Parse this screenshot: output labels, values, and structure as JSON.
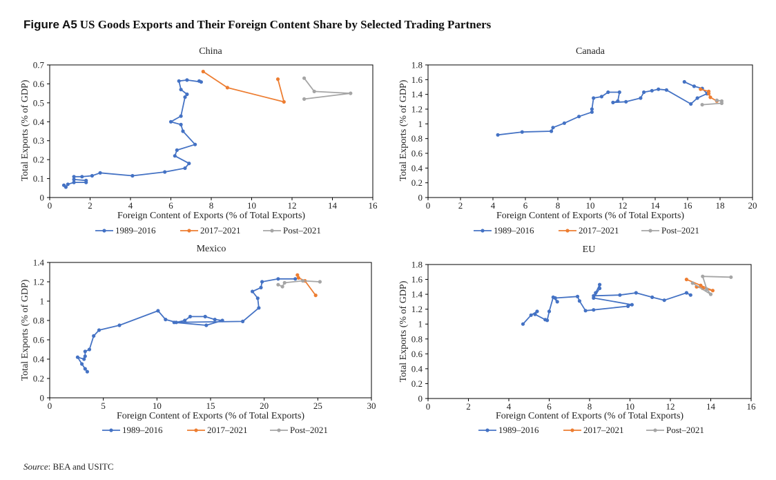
{
  "figure": {
    "label": "Figure A5",
    "title": "US Goods Exports and Their Foreign Content Share by Selected Trading Partners"
  },
  "source": {
    "label": "Source",
    "text": ": BEA and USITC"
  },
  "chart_data": [
    {
      "type": "line",
      "title": "China",
      "xlabel": "Foreign Content of Exports (% of Total Exports)",
      "ylabel": "Total Exports (% of GDP)",
      "xlim": [
        0,
        16
      ],
      "ylim": [
        0,
        0.7
      ],
      "xticks": [
        0,
        2,
        4,
        6,
        8,
        10,
        12,
        14,
        16
      ],
      "yticks": [
        0,
        0.1,
        0.2,
        0.3,
        0.4,
        0.5,
        0.6,
        0.7
      ],
      "xtick_labels": [
        "0",
        "2",
        "4",
        "6",
        "8",
        "10",
        "12",
        "14",
        "16"
      ],
      "ytick_labels": [
        "0",
        "0.1",
        "0.2",
        "0.3",
        "0.4",
        "0.5",
        "0.6",
        "0.7"
      ],
      "legend_position": "bottom",
      "series": [
        {
          "name": "1989–2016",
          "color": "#4472c4",
          "points": [
            [
              0.7,
              0.065
            ],
            [
              0.8,
              0.055
            ],
            [
              0.9,
              0.07
            ],
            [
              1.2,
              0.08
            ],
            [
              1.8,
              0.08
            ],
            [
              1.8,
              0.09
            ],
            [
              1.2,
              0.095
            ],
            [
              1.2,
              0.11
            ],
            [
              1.6,
              0.11
            ],
            [
              2.1,
              0.115
            ],
            [
              2.5,
              0.13
            ],
            [
              4.1,
              0.115
            ],
            [
              5.7,
              0.135
            ],
            [
              6.7,
              0.155
            ],
            [
              6.9,
              0.18
            ],
            [
              6.2,
              0.22
            ],
            [
              6.3,
              0.25
            ],
            [
              7.2,
              0.28
            ],
            [
              6.6,
              0.35
            ],
            [
              6.5,
              0.385
            ],
            [
              6.0,
              0.4
            ],
            [
              6.5,
              0.43
            ],
            [
              6.7,
              0.53
            ],
            [
              6.8,
              0.545
            ],
            [
              6.5,
              0.57
            ],
            [
              6.4,
              0.615
            ],
            [
              6.8,
              0.62
            ],
            [
              7.5,
              0.61
            ],
            [
              7.4,
              0.615
            ]
          ]
        },
        {
          "name": "2017–2021",
          "color": "#ed7d31",
          "points": [
            [
              7.6,
              0.665
            ],
            [
              8.8,
              0.58
            ],
            [
              11.6,
              0.505
            ],
            [
              11.3,
              0.625
            ]
          ]
        },
        {
          "name": "Post–2021",
          "color": "#a5a5a5",
          "points": [
            [
              12.6,
              0.52
            ],
            [
              14.9,
              0.55
            ],
            [
              13.1,
              0.56
            ],
            [
              12.6,
              0.63
            ]
          ]
        }
      ]
    },
    {
      "type": "line",
      "title": "Canada",
      "xlabel": "Foreign Content of Exports (% of Total Exports)",
      "ylabel": "Total Exports (% of GDP)",
      "xlim": [
        0,
        20
      ],
      "ylim": [
        0,
        1.8
      ],
      "xticks": [
        0,
        2,
        4,
        6,
        8,
        10,
        12,
        14,
        16,
        18,
        20
      ],
      "yticks": [
        0,
        0.2,
        0.4,
        0.6,
        0.8,
        1,
        1.2,
        1.4,
        1.6,
        1.8
      ],
      "xtick_labels": [
        "0",
        "2",
        "4",
        "6",
        "8",
        "10",
        "12",
        "14",
        "16",
        "18",
        "20"
      ],
      "ytick_labels": [
        "0",
        "0.2",
        "0.4",
        "0.6",
        "0.8",
        "1",
        "1.2",
        "1.4",
        "1.6",
        "1.8"
      ],
      "legend_position": "bottom",
      "series": [
        {
          "name": "1989–2016",
          "color": "#4472c4",
          "points": [
            [
              4.3,
              0.85
            ],
            [
              5.8,
              0.89
            ],
            [
              7.6,
              0.9
            ],
            [
              7.7,
              0.95
            ],
            [
              8.4,
              1.01
            ],
            [
              9.3,
              1.1
            ],
            [
              10.1,
              1.16
            ],
            [
              10.1,
              1.2
            ],
            [
              10.2,
              1.35
            ],
            [
              10.7,
              1.37
            ],
            [
              11.1,
              1.43
            ],
            [
              11.8,
              1.43
            ],
            [
              11.7,
              1.31
            ],
            [
              11.4,
              1.29
            ],
            [
              12.2,
              1.3
            ],
            [
              13.1,
              1.35
            ],
            [
              13.3,
              1.43
            ],
            [
              13.8,
              1.45
            ],
            [
              14.2,
              1.47
            ],
            [
              14.7,
              1.46
            ],
            [
              16.2,
              1.27
            ],
            [
              16.6,
              1.35
            ],
            [
              17.2,
              1.41
            ],
            [
              16.9,
              1.48
            ],
            [
              16.4,
              1.51
            ],
            [
              15.8,
              1.57
            ]
          ]
        },
        {
          "name": "2017–2021",
          "color": "#ed7d31",
          "points": [
            [
              16.8,
              1.47
            ],
            [
              17.3,
              1.44
            ],
            [
              17.3,
              1.41
            ],
            [
              17.4,
              1.36
            ],
            [
              17.8,
              1.31
            ]
          ]
        },
        {
          "name": "Post–2021",
          "color": "#a5a5a5",
          "points": [
            [
              16.9,
              1.26
            ],
            [
              18.1,
              1.28
            ],
            [
              18.1,
              1.31
            ],
            [
              17.8,
              1.32
            ]
          ]
        }
      ]
    },
    {
      "type": "line",
      "title": "Mexico",
      "xlabel": "Foreign Content of Exports (% of Total Exports)",
      "ylabel": "Total Exports (% of GDP)",
      "xlim": [
        0,
        30
      ],
      "ylim": [
        0,
        1.4
      ],
      "xticks": [
        0,
        5,
        10,
        15,
        20,
        25,
        30
      ],
      "yticks": [
        0,
        0.2,
        0.4,
        0.6,
        0.8,
        1,
        1.2,
        1.4
      ],
      "xtick_labels": [
        "0",
        "5",
        "10",
        "15",
        "20",
        "25",
        "30"
      ],
      "ytick_labels": [
        "0",
        "0.2",
        "0.4",
        "0.6",
        "0.8",
        "1",
        "1.2",
        "1.4"
      ],
      "legend_position": "bottom",
      "series": [
        {
          "name": "1989–2016",
          "color": "#4472c4",
          "points": [
            [
              3.5,
              0.27
            ],
            [
              3.3,
              0.3
            ],
            [
              3.0,
              0.35
            ],
            [
              2.6,
              0.42
            ],
            [
              3.2,
              0.4
            ],
            [
              3.3,
              0.43
            ],
            [
              3.3,
              0.48
            ],
            [
              3.7,
              0.5
            ],
            [
              4.1,
              0.64
            ],
            [
              4.6,
              0.7
            ],
            [
              6.5,
              0.75
            ],
            [
              10.1,
              0.9
            ],
            [
              10.8,
              0.81
            ],
            [
              11.8,
              0.78
            ],
            [
              12.6,
              0.8
            ],
            [
              13.1,
              0.84
            ],
            [
              14.5,
              0.84
            ],
            [
              15.4,
              0.81
            ],
            [
              16.1,
              0.8
            ],
            [
              14.6,
              0.75
            ],
            [
              11.6,
              0.78
            ],
            [
              18.0,
              0.79
            ],
            [
              19.5,
              0.93
            ],
            [
              19.4,
              1.03
            ],
            [
              18.9,
              1.1
            ],
            [
              19.7,
              1.14
            ],
            [
              19.8,
              1.2
            ],
            [
              21.3,
              1.23
            ],
            [
              22.9,
              1.23
            ]
          ]
        },
        {
          "name": "2017–2021",
          "color": "#ed7d31",
          "points": [
            [
              23.1,
              1.27
            ],
            [
              23.2,
              1.24
            ],
            [
              23.8,
              1.21
            ],
            [
              24.8,
              1.06
            ]
          ]
        },
        {
          "name": "Post–2021",
          "color": "#a5a5a5",
          "points": [
            [
              21.3,
              1.17
            ],
            [
              21.7,
              1.15
            ],
            [
              21.9,
              1.19
            ],
            [
              23.6,
              1.21
            ],
            [
              25.2,
              1.2
            ]
          ]
        }
      ]
    },
    {
      "type": "line",
      "title": "EU",
      "xlabel": "Foreign Content of Exports (% of Total Exports)",
      "ylabel": "Total Exports (% of GDP)",
      "xlim": [
        0,
        16
      ],
      "ylim": [
        0,
        1.8
      ],
      "xticks": [
        0,
        2,
        4,
        6,
        8,
        10,
        12,
        14,
        16
      ],
      "yticks": [
        0,
        0.2,
        0.4,
        0.6,
        0.8,
        1,
        1.2,
        1.4,
        1.6,
        1.8
      ],
      "xtick_labels": [
        "0",
        "2",
        "4",
        "6",
        "8",
        "10",
        "12",
        "14",
        "16"
      ],
      "ytick_labels": [
        "0",
        "0.2",
        "0.4",
        "0.6",
        "0.8",
        "1",
        "1.2",
        "1.4",
        "1.6",
        "1.8"
      ],
      "legend_position": "bottom",
      "series": [
        {
          "name": "1989–2016",
          "color": "#4472c4",
          "points": [
            [
              4.7,
              1.0
            ],
            [
              5.1,
              1.12
            ],
            [
              5.4,
              1.17
            ],
            [
              5.3,
              1.13
            ],
            [
              5.8,
              1.06
            ],
            [
              5.9,
              1.05
            ],
            [
              6.0,
              1.17
            ],
            [
              6.2,
              1.36
            ],
            [
              6.4,
              1.3
            ],
            [
              6.3,
              1.35
            ],
            [
              7.4,
              1.37
            ],
            [
              7.5,
              1.31
            ],
            [
              7.8,
              1.18
            ],
            [
              8.2,
              1.19
            ],
            [
              9.9,
              1.24
            ],
            [
              10.1,
              1.26
            ],
            [
              8.2,
              1.35
            ],
            [
              8.5,
              1.48
            ],
            [
              8.5,
              1.53
            ],
            [
              8.3,
              1.42
            ],
            [
              8.2,
              1.38
            ],
            [
              9.5,
              1.39
            ],
            [
              10.3,
              1.42
            ],
            [
              11.1,
              1.36
            ],
            [
              11.7,
              1.32
            ],
            [
              12.8,
              1.42
            ],
            [
              13.0,
              1.39
            ]
          ]
        },
        {
          "name": "2017–2021",
          "color": "#ed7d31",
          "points": [
            [
              12.8,
              1.6
            ],
            [
              13.5,
              1.52
            ],
            [
              14.1,
              1.45
            ],
            [
              13.3,
              1.5
            ],
            [
              13.6,
              1.48
            ]
          ]
        },
        {
          "name": "Post–2021",
          "color": "#a5a5a5",
          "points": [
            [
              13.1,
              1.55
            ],
            [
              14.0,
              1.4
            ],
            [
              13.8,
              1.47
            ],
            [
              13.6,
              1.64
            ],
            [
              15.0,
              1.63
            ]
          ]
        }
      ]
    }
  ]
}
